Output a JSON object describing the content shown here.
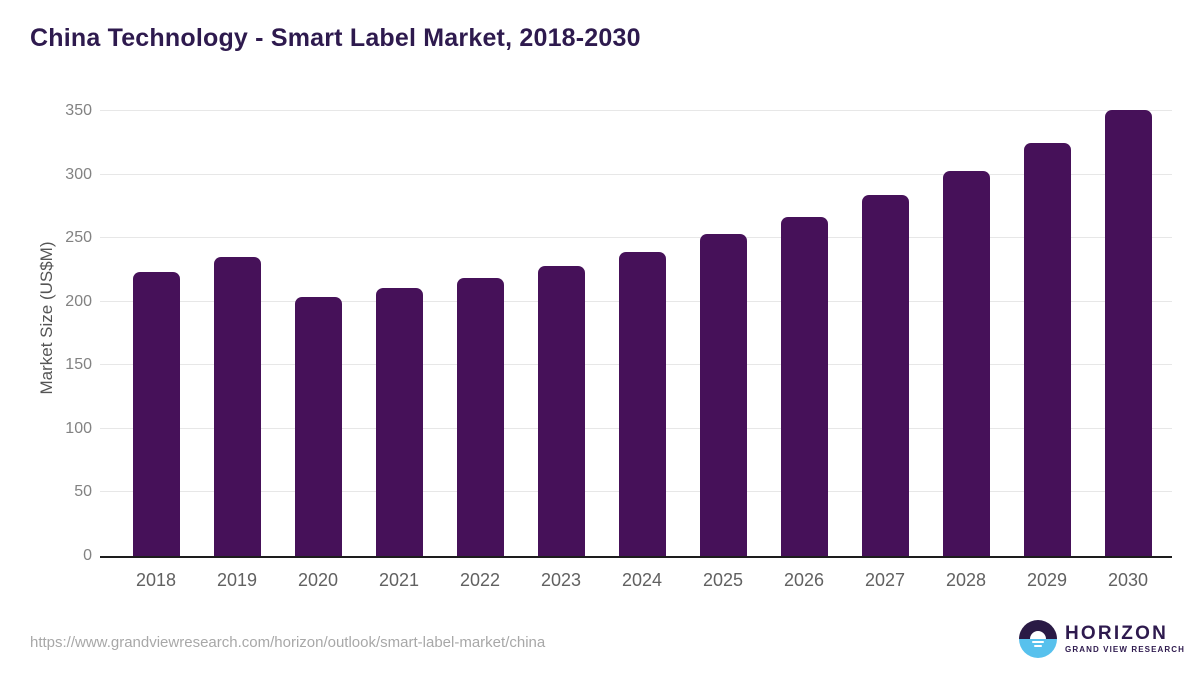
{
  "title": "China Technology - Smart Label Market, 2018-2030",
  "source_url": "https://www.grandviewresearch.com/horizon/outlook/smart-label-market/china",
  "logo": {
    "brand": "HORIZON",
    "sub_brand": "GRAND VIEW RESEARCH"
  },
  "colors": {
    "bar": "#461159",
    "title": "#2e1a4e",
    "gridline": "#e7e7e7",
    "axis_line": "#1d1d1d",
    "y_tick_label": "#828282",
    "x_tick_label": "#616161",
    "axis_title": "#555555",
    "source_url": "#a8a8a8",
    "logo_dark": "#2a1a45",
    "logo_blue": "#57c1ed"
  },
  "chart_data": {
    "type": "bar",
    "title": "China Technology - Smart Label Market, 2018-2030",
    "categories": [
      "2018",
      "2019",
      "2020",
      "2021",
      "2022",
      "2023",
      "2024",
      "2025",
      "2026",
      "2027",
      "2028",
      "2029",
      "2030"
    ],
    "values": [
      223,
      235,
      204,
      211,
      219,
      228,
      239,
      253,
      267,
      284,
      303,
      325,
      351
    ],
    "xlabel": "",
    "ylabel": "Market Size (US$M)",
    "ylim": [
      0,
      350
    ],
    "yticks": [
      0,
      50,
      100,
      150,
      200,
      250,
      300,
      350
    ],
    "grid": true,
    "legend": false,
    "bar_color": "#461159"
  }
}
